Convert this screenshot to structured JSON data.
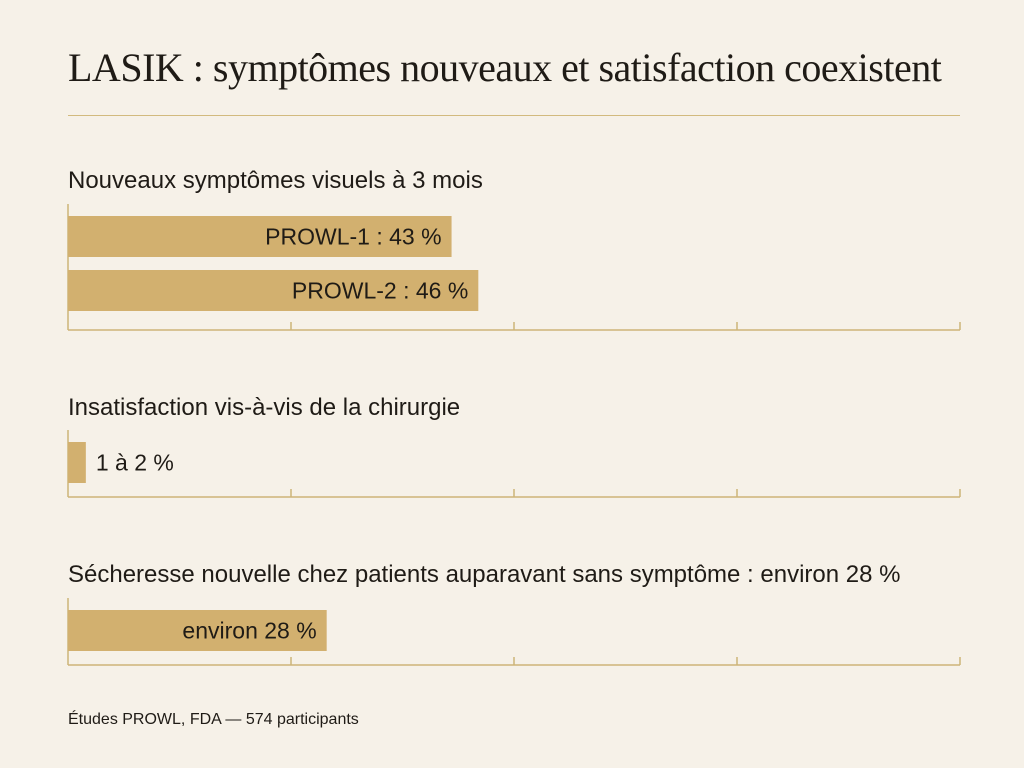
{
  "title": "LASIK : symptômes nouveaux et satisfaction coexistent",
  "source": "Études PROWL, FDA — 574 participants",
  "colors": {
    "bar": "#d2b06f",
    "axis": "#cdb478",
    "background": "#f6f1e8",
    "text": "#1f1b16"
  },
  "chart_data": [
    {
      "type": "bar",
      "orientation": "horizontal",
      "title": "Nouveaux symptômes visuels à 3 mois",
      "xlim": [
        0,
        100
      ],
      "categories": [
        "PROWL-1",
        "PROWL-2"
      ],
      "values": [
        43,
        46
      ],
      "labels": [
        "PROWL-1 : 43 %",
        "PROWL-2 : 46 %"
      ],
      "label_position": "inside-end"
    },
    {
      "type": "bar",
      "orientation": "horizontal",
      "title": "Insatisfaction vis-à-vis de la chirurgie",
      "xlim": [
        0,
        100
      ],
      "categories": [
        "Insatisfaction"
      ],
      "values": [
        2
      ],
      "labels": [
        "1 à 2 %"
      ],
      "label_position": "outside-end"
    },
    {
      "type": "bar",
      "orientation": "horizontal",
      "title": "Sécheresse nouvelle chez patients auparavant sans symptôme : environ 28 %",
      "xlim": [
        0,
        100
      ],
      "categories": [
        "Sécheresse nouvelle"
      ],
      "values": [
        29
      ],
      "labels": [
        "environ 28 %"
      ],
      "label_position": "inside-end"
    }
  ]
}
